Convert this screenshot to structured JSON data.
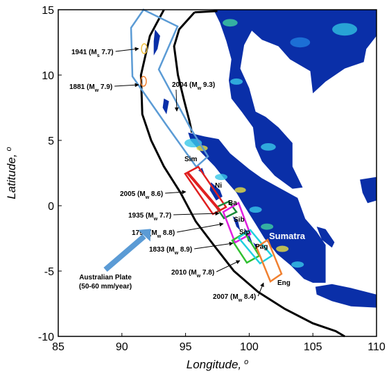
{
  "chart_data": {
    "type": "map",
    "xlabel": "Longitude,",
    "xlabel_sup": "o",
    "ylabel": "Latitude,",
    "ylabel_sup": "o",
    "xlim": [
      85,
      110
    ],
    "ylim": [
      -10,
      15
    ],
    "xticks": [
      85,
      90,
      95,
      100,
      105,
      110
    ],
    "yticks": [
      -10,
      -5,
      0,
      5,
      10,
      15
    ],
    "events": [
      [
        "1941 (M",
        "s",
        " 7.7)"
      ],
      [
        "1881 (M",
        "w",
        " 7.9)"
      ],
      [
        "2004 (M",
        "w",
        " 9.3)"
      ],
      [
        "2005 (M",
        "w",
        " 8.6)"
      ],
      [
        "1935 (M",
        "w",
        " 7.7)"
      ],
      [
        "1797 (M",
        "w",
        " 8.8)"
      ],
      [
        "1833 (M",
        "w",
        " 8.9)"
      ],
      [
        "2010 (M",
        "w",
        " 7.8)"
      ],
      [
        "2007 (M",
        "w",
        " 8.4)"
      ]
    ],
    "islands": [
      "Sim",
      "Ni",
      "Ba",
      "Sib",
      "Sip",
      "Pag",
      "Eng"
    ],
    "region_label": "Sumatra",
    "plate_label": [
      "Australian Plate",
      "(50-60 mm/year)"
    ]
  }
}
